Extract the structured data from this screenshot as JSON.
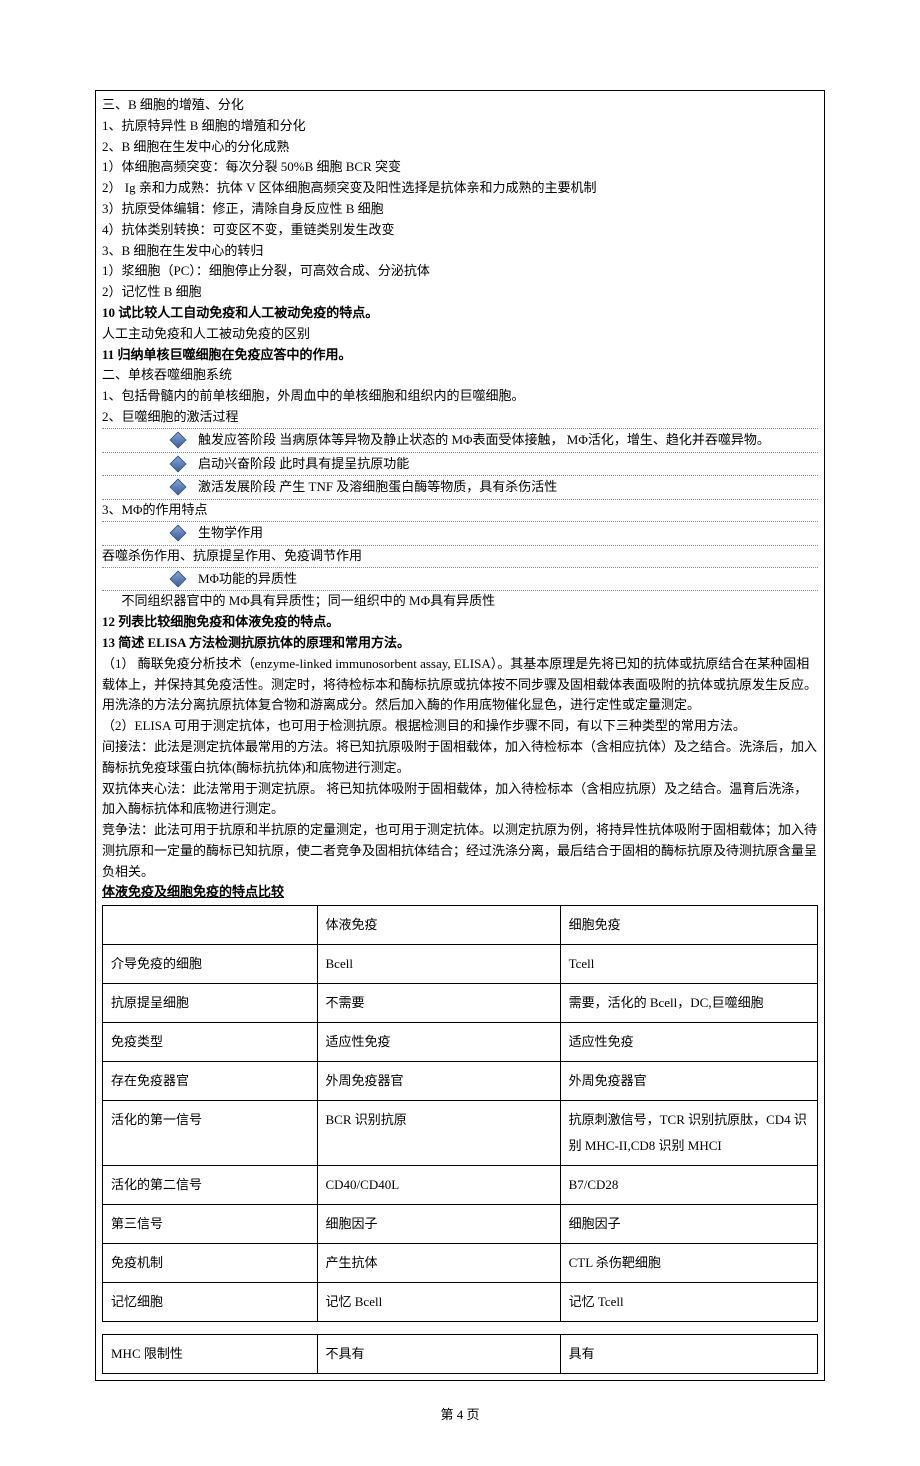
{
  "lines": {
    "l1": "三、B 细胞的增殖、分化",
    "l2": "1、抗原特异性 B 细胞的增殖和分化",
    "l3": "2、B 细胞在生发中心的分化成熟",
    "l4": "1）体细胞高频突变：每次分裂 50%B 细胞 BCR 突变",
    "l5": "2） Ig 亲和力成熟：抗体 V 区体细胞高频突变及阳性选择是抗体亲和力成熟的主要机制",
    "l6": "3）抗原受体编辑：修正，清除自身反应性 B 细胞",
    "l7": "4）抗体类别转换：可变区不变，重链类别发生改变",
    "l8": "3、B 细胞在生发中心的转归",
    "l9": "1）浆细胞（PC）：细胞停止分裂，可高效合成、分泌抗体",
    "l10": "2）记忆性 B 细胞",
    "l11": "10 试比较人工自动免疫和人工被动免疫的特点。",
    "l12": "人工主动免疫和人工被动免疫的区别",
    "l13": "11 归纳单核巨噬细胞在免疫应答中的作用。",
    "l14": "二、单核吞噬细胞系统",
    "l15": "1、包括骨髓内的前单核细胞，外周血中的单核细胞和组织内的巨噬细胞。",
    "l16": "2、巨噬细胞的激活过程",
    "b1": "触发应答阶段  当病原体等异物及静止状态的 MΦ表面受体接触， MΦ活化，增生、趋化并吞噬异物。",
    "b2": "启动兴奋阶段  此时具有提呈抗原功能",
    "b3": "激活发展阶段  产生 TNF 及溶细胞蛋白酶等物质，具有杀伤活性",
    "l17": "3、MΦ的作用特点",
    "b4": "生物学作用",
    "l18": "吞噬杀伤作用、抗原提呈作用、免疫调节作用",
    "b5": "MΦ功能的异质性",
    "l19": "不同组织器官中的 MΦ具有异质性；同一组织中的 MΦ具有异质性",
    "l20": "12 列表比较细胞免疫和体液免疫的特点。",
    "l21": "13 简述 ELISA 方法检测抗原抗体的原理和常用方法。",
    "l22": "（1）  酶联免疫分析技术（enzyme-linked immunosorbent assay, ELISA）。其基本原理是先将已知的抗体或抗原结合在某种固相载体上，并保持其免疫活性。测定时，将待检标本和酶标抗原或抗体按不同步骤及固相载体表面吸附的抗体或抗原发生反应。用洗涤的方法分离抗原抗体复合物和游离成分。然后加入酶的作用底物催化显色，进行定性或定量测定。",
    "l23": "（2）ELISA 可用于测定抗体，也可用于检测抗原。根据检测目的和操作步骤不同，有以下三种类型的常用方法。",
    "l24": "间接法：此法是测定抗体最常用的方法。将已知抗原吸附于固相载体，加入待检标本（含相应抗体）及之结合。洗涤后，加入酶标抗免疫球蛋白抗体(酶标抗抗体)和底物进行测定。",
    "l25": "双抗体夹心法：此法常用于测定抗原。 将已知抗体吸附于固相载体，加入待检标本（含相应抗原）及之结合。温育后洗涤，加入酶标抗体和底物进行测定。",
    "l26": "竞争法：此法可用于抗原和半抗原的定量测定，也可用于测定抗体。以测定抗原为例，将持异性抗体吸附于固相载体；加入待测抗原和一定量的酶标已知抗原，使二者竞争及固相抗体结合；经过洗涤分离，最后结合于固相的酶标抗原及待测抗原含量呈负相关。",
    "l27": "体液免疫及细胞免疫的特点比较"
  },
  "table": {
    "header": [
      "",
      "体液免疫",
      "细胞免疫"
    ],
    "rows": [
      [
        "介导免疫的细胞",
        "Bcell",
        "Tcell"
      ],
      [
        "抗原提呈细胞",
        "不需要",
        "需要，活化的 Bcell，DC,巨噬细胞"
      ],
      [
        "免疫类型",
        "适应性免疫",
        "适应性免疫"
      ],
      [
        "存在免疫器官",
        "外周免疫器官",
        "外周免疫器官"
      ],
      [
        "活化的第一信号",
        "BCR 识别抗原",
        "抗原刺激信号，TCR 识别抗原肽，CD4 识别 MHC-II,CD8 识别 MHCI"
      ],
      [
        "活化的第二信号",
        "CD40/CD40L",
        "B7/CD28"
      ],
      [
        "第三信号",
        "细胞因子",
        "细胞因子"
      ],
      [
        "免疫机制",
        "产生抗体",
        "CTL 杀伤靶细胞"
      ],
      [
        "记忆细胞",
        "记忆 Bcell",
        "记忆 Tcell"
      ]
    ],
    "extra_row": [
      "MHC 限制性",
      "不具有",
      "具有"
    ]
  },
  "footer": "第 4 页"
}
